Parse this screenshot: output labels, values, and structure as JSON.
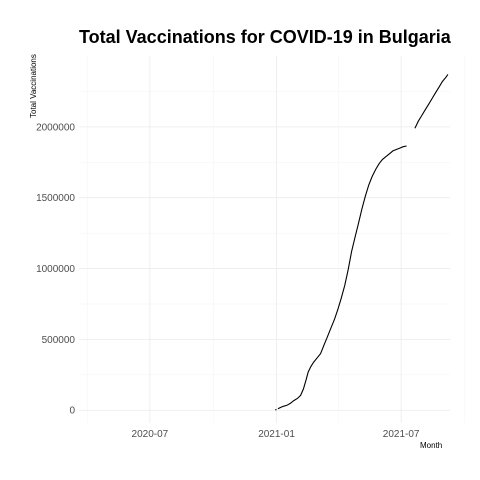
{
  "chart_data": {
    "type": "line",
    "title": "Total Vaccinations for COVID-19 in Bulgaria",
    "xlabel": "Month",
    "ylabel": "Total Vaccinations",
    "xlim": [
      "2020-03-20",
      "2021-09-10"
    ],
    "ylim": [
      -90000,
      2500000
    ],
    "x_ticks": [
      "2020-07",
      "2021-01",
      "2021-07"
    ],
    "x_minor_ticks": [
      "2020-04",
      "2020-10",
      "2021-04",
      "2021-10"
    ],
    "y_ticks": [
      0,
      500000,
      1000000,
      1500000,
      2000000
    ],
    "y_tick_labels": [
      "0",
      "500000",
      "1000000",
      "1500000",
      "2000000"
    ],
    "y_minor_ticks": [
      250000,
      750000,
      1250000,
      1750000,
      2250000
    ],
    "grid": true,
    "legend": "none",
    "series": [
      {
        "segments": [
          {
            "x": [
              "2020-12-30",
              "2021-01-01"
            ],
            "y": [
              2000,
              5000
            ]
          },
          {
            "x": [
              "2021-01-03",
              "2021-01-07",
              "2021-01-11",
              "2021-01-16",
              "2021-01-21",
              "2021-01-26",
              "2021-01-31",
              "2021-02-05",
              "2021-02-09",
              "2021-02-13",
              "2021-02-16",
              "2021-02-20",
              "2021-02-24",
              "2021-03-01",
              "2021-03-06",
              "2021-03-11",
              "2021-03-16",
              "2021-03-21",
              "2021-03-26",
              "2021-03-31",
              "2021-04-05",
              "2021-04-10",
              "2021-04-15",
              "2021-04-20",
              "2021-04-25",
              "2021-04-30",
              "2021-05-05",
              "2021-05-10",
              "2021-05-15",
              "2021-05-20",
              "2021-05-25",
              "2021-05-30",
              "2021-06-04",
              "2021-06-09",
              "2021-06-14",
              "2021-06-19",
              "2021-06-24",
              "2021-06-29",
              "2021-07-04",
              "2021-07-09"
            ],
            "y": [
              10000,
              20000,
              28000,
              35000,
              48000,
              68000,
              82000,
              105000,
              150000,
              215000,
              270000,
              310000,
              340000,
              370000,
              400000,
              460000,
              520000,
              580000,
              640000,
              710000,
              790000,
              880000,
              990000,
              1120000,
              1220000,
              1320000,
              1420000,
              1510000,
              1590000,
              1650000,
              1700000,
              1740000,
              1770000,
              1790000,
              1810000,
              1830000,
              1840000,
              1850000,
              1860000,
              1865000
            ]
          },
          {
            "x": [
              "2021-07-21",
              "2021-07-26",
              "2021-07-31",
              "2021-08-05",
              "2021-08-10",
              "2021-08-15",
              "2021-08-20",
              "2021-08-25",
              "2021-08-30",
              "2021-09-04",
              "2021-09-07"
            ],
            "y": [
              1990000,
              2040000,
              2080000,
              2120000,
              2160000,
              2200000,
              2240000,
              2280000,
              2320000,
              2350000,
              2370000
            ]
          }
        ]
      }
    ]
  }
}
